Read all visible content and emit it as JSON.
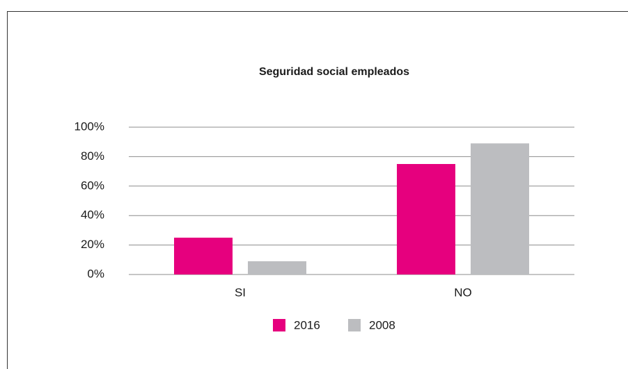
{
  "chart_data": {
    "type": "bar",
    "title": "Seguridad social empleados",
    "categories": [
      "SI",
      "NO"
    ],
    "series": [
      {
        "name": "2016",
        "color": "#e6007e",
        "values": [
          25,
          75
        ]
      },
      {
        "name": "2008",
        "color": "#bcbdc0",
        "values": [
          9,
          89
        ]
      }
    ],
    "ylim": [
      0,
      100
    ],
    "yticks": [
      {
        "value": 0,
        "label": "0%"
      },
      {
        "value": 20,
        "label": "20%"
      },
      {
        "value": 40,
        "label": "40%"
      },
      {
        "value": 60,
        "label": "60%"
      },
      {
        "value": 80,
        "label": "80%"
      },
      {
        "value": 100,
        "label": "100%"
      }
    ],
    "grid": true,
    "legend": "bottom"
  }
}
